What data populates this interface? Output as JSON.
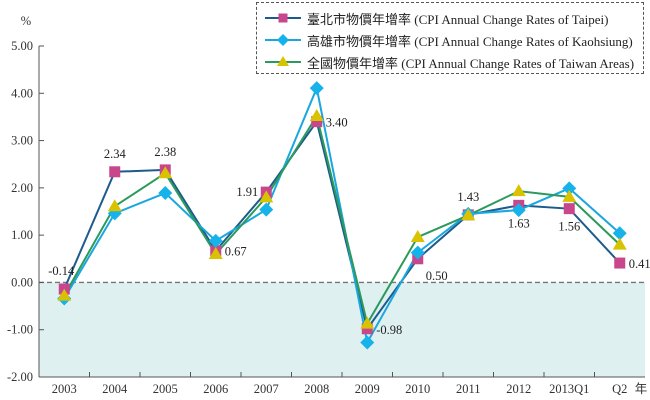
{
  "chart_data": {
    "type": "line",
    "title": "",
    "ylabel": "%",
    "xlabel": "",
    "x_unit_label": "年",
    "categories": [
      "2003",
      "2004",
      "2005",
      "2006",
      "2007",
      "2008",
      "2009",
      "2010",
      "2011",
      "2012",
      "2013Q1",
      "Q2"
    ],
    "ylim": [
      -2,
      5
    ],
    "yticks": [
      {
        "value": 5,
        "label": "5.00"
      },
      {
        "value": 4,
        "label": "4.00"
      },
      {
        "value": 3,
        "label": "3.00"
      },
      {
        "value": 2,
        "label": "2.00"
      },
      {
        "value": 1,
        "label": "1.00"
      },
      {
        "value": 0,
        "label": "0.00"
      },
      {
        "value": -1,
        "label": "-1.00"
      },
      {
        "value": -2,
        "label": "-2.00"
      }
    ],
    "grid": false,
    "zero_line": "dashed",
    "negative_region_fill": "#dff0f1",
    "legend_position": "top-right",
    "series": [
      {
        "name": "臺北市物價年增率 (CPI Annual Change Rates of Taipei)",
        "marker": "square",
        "line_color": "#1d5b8c",
        "marker_color": "#c8468b",
        "values": [
          -0.14,
          2.34,
          2.38,
          0.67,
          1.91,
          3.4,
          -0.98,
          0.5,
          1.43,
          1.63,
          1.56,
          0.41
        ],
        "data_labels": [
          {
            "text": "-0.14",
            "placement": "above-left"
          },
          {
            "text": "2.34",
            "placement": "above"
          },
          {
            "text": "2.38",
            "placement": "above"
          },
          {
            "text": "0.67",
            "placement": "right"
          },
          {
            "text": "1.91",
            "placement": "left"
          },
          {
            "text": "3.40",
            "placement": "right"
          },
          {
            "text": "-0.98",
            "placement": "right"
          },
          {
            "text": "0.50",
            "placement": "below-right"
          },
          {
            "text": "1.43",
            "placement": "above"
          },
          {
            "text": "1.63",
            "placement": "below"
          },
          {
            "text": "1.56",
            "placement": "below"
          },
          {
            "text": "0.41",
            "placement": "right"
          }
        ]
      },
      {
        "name": "高雄市物價年增率 (CPI Annual Change Rates of Kaohsiung)",
        "marker": "diamond",
        "line_color": "#1aa7df",
        "marker_color": "#16b2ea",
        "values": [
          -0.34,
          1.46,
          1.89,
          0.88,
          1.54,
          4.11,
          -1.27,
          0.63,
          1.45,
          1.53,
          1.99,
          1.04
        ],
        "data_labels": []
      },
      {
        "name": "全國物價年增率 (CPI Annual Change Rates of Taiwan Areas)",
        "marker": "triangle",
        "line_color": "#2b9a5c",
        "marker_color": "#d9c200",
        "values": [
          -0.28,
          1.61,
          2.31,
          0.6,
          1.8,
          3.52,
          -0.87,
          0.96,
          1.42,
          1.93,
          1.81,
          0.8
        ],
        "data_labels": []
      }
    ]
  }
}
